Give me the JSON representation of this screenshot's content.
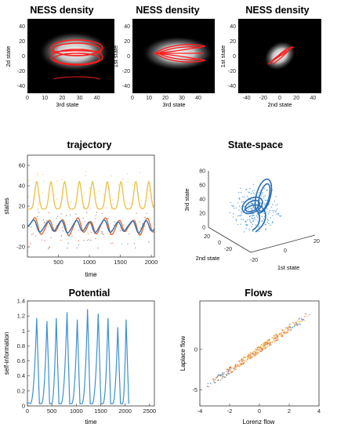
{
  "colors": {
    "red": "#ff1a1a",
    "yellow": "#eec24f",
    "orange": "#e0622b",
    "blue": "#2a6fb3",
    "lightblue": "#3b8fd6",
    "gray": "#6b7c93"
  },
  "chart_data": [
    {
      "type": "heatmap",
      "title": "NESS density",
      "xlabel": "3rd state",
      "ylabel": "2d state",
      "xticks": [
        "0",
        "10",
        "20",
        "30",
        "40"
      ],
      "yticks": [
        "40",
        "20",
        "0",
        "-20",
        "-40"
      ],
      "xlim": [
        0,
        50
      ],
      "ylim": [
        -50,
        50
      ]
    },
    {
      "type": "heatmap",
      "title": "NESS density",
      "xlabel": "3rd state",
      "ylabel": "1st state",
      "xticks": [
        "0",
        "10",
        "20",
        "30",
        "40"
      ],
      "yticks": [
        "40",
        "20",
        "0",
        "-20",
        "-40"
      ],
      "xlim": [
        0,
        50
      ],
      "ylim": [
        -50,
        50
      ]
    },
    {
      "type": "heatmap",
      "title": "NESS density",
      "xlabel": "2nd state",
      "ylabel": "1st state",
      "xticks": [
        "-40",
        "-20",
        "0",
        "20",
        "40"
      ],
      "yticks": [
        "40",
        "20",
        "0",
        "-20",
        "-40"
      ],
      "xlim": [
        -50,
        50
      ],
      "ylim": [
        -50,
        50
      ]
    },
    {
      "type": "line",
      "title": "trajectory",
      "xlabel": "time",
      "ylabel": "states",
      "xticks": [
        "500",
        "1000",
        "1500",
        "2000"
      ],
      "yticks": [
        "60",
        "40",
        "20",
        "0",
        "-20"
      ],
      "xlim": [
        0,
        2050
      ],
      "ylim": [
        -30,
        70
      ],
      "peak_times": [
        150,
        380,
        600,
        840,
        1050,
        1290,
        1510,
        1750,
        1960
      ]
    },
    {
      "type": "scatter",
      "title": "State-space",
      "xlabel": "1st state",
      "ylabel": "2nd state",
      "zlabel": "3rd state",
      "zticks": [
        "80",
        "60",
        "40",
        "20",
        "0"
      ],
      "yticks": [
        "20",
        "0",
        "-20"
      ],
      "xticks": [
        "20",
        "0",
        "-20"
      ]
    },
    {
      "type": "line",
      "title": "Potential",
      "xlabel": "time",
      "ylabel": "self-information",
      "xticks": [
        "0",
        "500",
        "1000",
        "1500",
        "2000",
        "2500"
      ],
      "yticks": [
        "1.4",
        "1.2",
        "1",
        "0.8",
        "0.6",
        "0.4",
        "0.2",
        "0"
      ],
      "xlim": [
        0,
        2600
      ],
      "ylim": [
        0,
        1.4
      ],
      "peaks": [
        {
          "t": 190,
          "v": 1.17
        },
        {
          "t": 400,
          "v": 1.13
        },
        {
          "t": 590,
          "v": 1.17
        },
        {
          "t": 810,
          "v": 1.25
        },
        {
          "t": 1020,
          "v": 1.15
        },
        {
          "t": 1230,
          "v": 1.29
        },
        {
          "t": 1450,
          "v": 1.23
        },
        {
          "t": 1650,
          "v": 1.17
        },
        {
          "t": 1850,
          "v": 1.05
        },
        {
          "t": 2020,
          "v": 1.15
        }
      ]
    },
    {
      "type": "scatter",
      "title": "Flows",
      "xlabel": "Lorenz flow",
      "ylabel": "Laplace flow",
      "xticks": [
        "-4",
        "-2",
        "0",
        "2",
        "4"
      ],
      "yticks": [
        "0",
        "-5"
      ],
      "xlim": [
        -4,
        4
      ],
      "ylim": [
        -7,
        6
      ],
      "slope": 1.3
    }
  ]
}
